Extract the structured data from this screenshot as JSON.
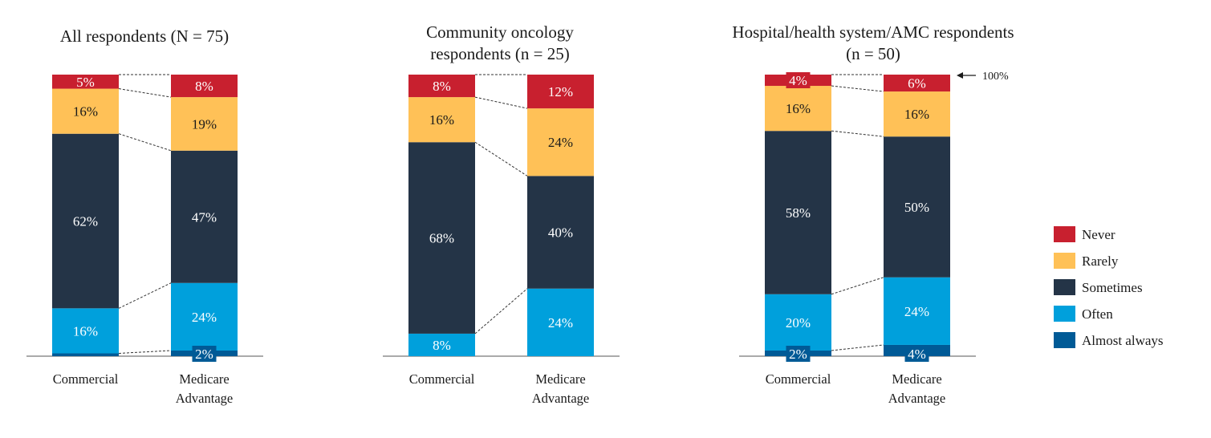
{
  "chart_data": {
    "type": "stacked-bar",
    "unit": "%",
    "ylim": [
      0,
      100
    ],
    "annotation": "100%",
    "legend": [
      {
        "key": "never",
        "label": "Never",
        "color": "#C8202F"
      },
      {
        "key": "rarely",
        "label": "Rarely",
        "color": "#FFC157"
      },
      {
        "key": "sometimes",
        "label": "Sometimes",
        "color": "#243447"
      },
      {
        "key": "often",
        "label": "Often",
        "color": "#00A0DC"
      },
      {
        "key": "almost_always",
        "label": "Almost always",
        "color": "#005A96"
      }
    ],
    "panels": [
      {
        "title": [
          "All respondents (N = 75)"
        ],
        "bars": [
          {
            "label": [
              "Commercial"
            ],
            "values": {
              "almost_always": 1,
              "often": 16,
              "sometimes": 62,
              "rarely": 16,
              "never": 5
            },
            "labels": {
              "almost_always": "",
              "often": "16%",
              "sometimes": "62%",
              "rarely": "16%",
              "never": "5%"
            }
          },
          {
            "label": [
              "Medicare",
              "Advantage"
            ],
            "values": {
              "almost_always": 2,
              "often": 24,
              "sometimes": 47,
              "rarely": 19,
              "never": 8
            },
            "labels": {
              "almost_always": "2%",
              "often": "24%",
              "sometimes": "47%",
              "rarely": "19%",
              "never": "8%"
            }
          }
        ]
      },
      {
        "title": [
          "Community oncology",
          "respondents (n = 25)"
        ],
        "bars": [
          {
            "label": [
              "Commercial"
            ],
            "values": {
              "almost_always": 0,
              "often": 8,
              "sometimes": 68,
              "rarely": 16,
              "never": 8
            },
            "labels": {
              "almost_always": "",
              "often": "8%",
              "sometimes": "68%",
              "rarely": "16%",
              "never": "8%"
            }
          },
          {
            "label": [
              "Medicare",
              "Advantage"
            ],
            "values": {
              "almost_always": 0,
              "often": 24,
              "sometimes": 40,
              "rarely": 24,
              "never": 12
            },
            "labels": {
              "almost_always": "",
              "often": "24%",
              "sometimes": "40%",
              "rarely": "24%",
              "never": "12%"
            }
          }
        ]
      },
      {
        "title": [
          "Hospital/health system/AMC respondents",
          "(n = 50)"
        ],
        "bars": [
          {
            "label": [
              "Commercial"
            ],
            "values": {
              "almost_always": 2,
              "often": 20,
              "sometimes": 58,
              "rarely": 16,
              "never": 4
            },
            "labels": {
              "almost_always": "2%",
              "often": "20%",
              "sometimes": "58%",
              "rarely": "16%",
              "never": "4%"
            }
          },
          {
            "label": [
              "Medicare",
              "Advantage"
            ],
            "values": {
              "almost_always": 4,
              "often": 24,
              "sometimes": 50,
              "rarely": 16,
              "never": 6
            },
            "labels": {
              "almost_always": "4%",
              "often": "24%",
              "sometimes": "50%",
              "rarely": "16%",
              "never": "6%"
            }
          }
        ]
      }
    ]
  }
}
